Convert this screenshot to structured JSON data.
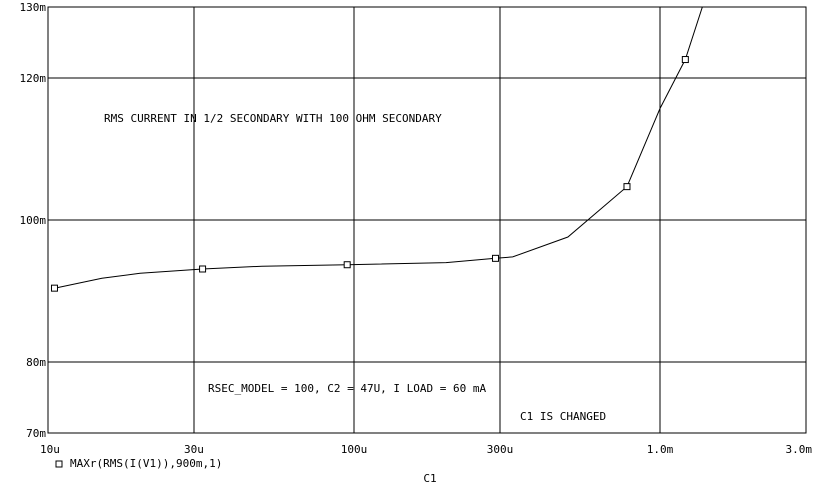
{
  "chart_data": {
    "type": "line",
    "x_scale": "log",
    "xlim": [
      1e-05,
      0.003
    ],
    "ylim": [
      0.07,
      0.13
    ],
    "grid": true,
    "x_ticks": [
      {
        "value": 1e-05,
        "label": "10u"
      },
      {
        "value": 3e-05,
        "label": "30u"
      },
      {
        "value": 0.0001,
        "label": "100u"
      },
      {
        "value": 0.0003,
        "label": "300u"
      },
      {
        "value": 0.001,
        "label": "1.0m"
      },
      {
        "value": 0.003,
        "label": "3.0m"
      }
    ],
    "y_ticks": [
      {
        "value": 0.07,
        "label": "70m"
      },
      {
        "value": 0.08,
        "label": "80m"
      },
      {
        "value": 0.1,
        "label": "100m"
      },
      {
        "value": 0.12,
        "label": "120m"
      },
      {
        "value": 0.13,
        "label": "130m"
      }
    ],
    "xlabel": "C1",
    "series": [
      {
        "name": "MAXr(RMS(I(V1)),900m,1)",
        "marker": "square",
        "color": "#000000",
        "points": [
          [
            1.05e-05,
            0.0904
          ],
          [
            1.5e-05,
            0.0918
          ],
          [
            2e-05,
            0.0925
          ],
          [
            3.2e-05,
            0.0931
          ],
          [
            5e-05,
            0.0935
          ],
          [
            9.5e-05,
            0.0937
          ],
          [
            0.0002,
            0.094
          ],
          [
            0.00029,
            0.0946
          ],
          [
            0.00033,
            0.0948
          ],
          [
            0.0005,
            0.0976
          ],
          [
            0.00078,
            0.1047
          ],
          [
            0.001,
            0.1157
          ],
          [
            0.00121,
            0.1226
          ],
          [
            0.00138,
            0.1302
          ]
        ],
        "marker_points": [
          [
            1.05e-05,
            0.0904
          ],
          [
            3.2e-05,
            0.0931
          ],
          [
            9.5e-05,
            0.0937
          ],
          [
            0.00029,
            0.0946
          ],
          [
            0.00078,
            0.1047
          ],
          [
            0.00121,
            0.1226
          ]
        ]
      }
    ],
    "annotations": [
      {
        "text": "RMS CURRENT IN 1/2 SECONDARY WITH 100 OHM SECONDARY"
      },
      {
        "text": "RSEC_MODEL = 100,  C2 = 47U,  I LOAD = 60 mA"
      },
      {
        "text": "C1 IS CHANGED"
      }
    ]
  }
}
